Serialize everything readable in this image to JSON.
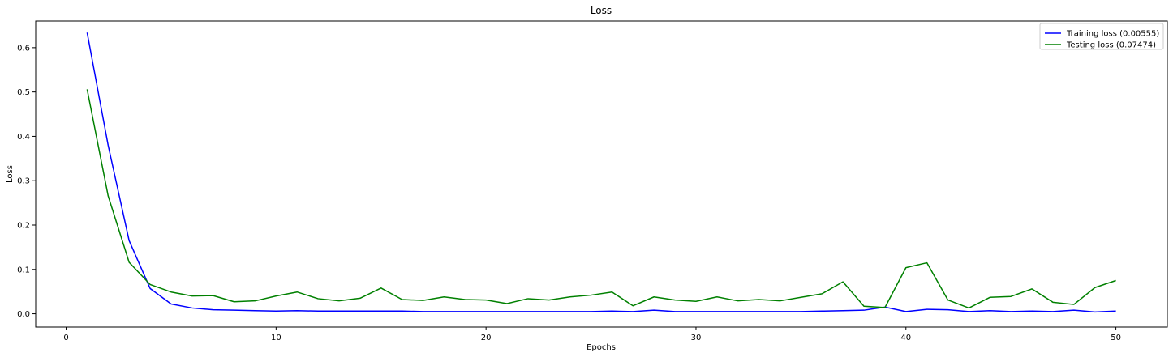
{
  "chart_data": {
    "type": "line",
    "title": "Loss",
    "xlabel": "Epochs",
    "ylabel": "Loss",
    "xlim": [
      -1.45,
      52.45
    ],
    "ylim": [
      -0.03,
      0.66
    ],
    "xticks": [
      0,
      10,
      20,
      30,
      40,
      50
    ],
    "yticks": [
      0.0,
      0.1,
      0.2,
      0.3,
      0.4,
      0.5,
      0.6
    ],
    "ytick_labels": [
      "0.0",
      "0.1",
      "0.2",
      "0.3",
      "0.4",
      "0.5",
      "0.6"
    ],
    "grid": false,
    "legend_position": "top-right",
    "x": [
      1,
      2,
      3,
      4,
      5,
      6,
      7,
      8,
      9,
      10,
      11,
      12,
      13,
      14,
      15,
      16,
      17,
      18,
      19,
      20,
      21,
      22,
      23,
      24,
      25,
      26,
      27,
      28,
      29,
      30,
      31,
      32,
      33,
      34,
      35,
      36,
      37,
      38,
      39,
      40,
      41,
      42,
      43,
      44,
      45,
      46,
      47,
      48,
      49,
      50
    ],
    "series": [
      {
        "name": "Training loss (0.00555)",
        "color": "#0000ff",
        "values": [
          0.634,
          0.38,
          0.165,
          0.057,
          0.022,
          0.013,
          0.009,
          0.008,
          0.007,
          0.006,
          0.007,
          0.006,
          0.006,
          0.006,
          0.006,
          0.006,
          0.005,
          0.005,
          0.005,
          0.005,
          0.005,
          0.005,
          0.005,
          0.005,
          0.005,
          0.006,
          0.005,
          0.008,
          0.005,
          0.005,
          0.005,
          0.005,
          0.005,
          0.005,
          0.005,
          0.006,
          0.007,
          0.008,
          0.015,
          0.005,
          0.01,
          0.009,
          0.005,
          0.007,
          0.005,
          0.006,
          0.005,
          0.008,
          0.004,
          0.006
        ]
      },
      {
        "name": "Testing loss (0.07474)",
        "color": "#008000",
        "values": [
          0.506,
          0.266,
          0.116,
          0.066,
          0.049,
          0.04,
          0.041,
          0.027,
          0.029,
          0.04,
          0.049,
          0.034,
          0.029,
          0.035,
          0.058,
          0.032,
          0.03,
          0.038,
          0.032,
          0.031,
          0.023,
          0.034,
          0.031,
          0.038,
          0.042,
          0.049,
          0.018,
          0.038,
          0.031,
          0.028,
          0.038,
          0.029,
          0.032,
          0.029,
          0.037,
          0.045,
          0.072,
          0.017,
          0.014,
          0.104,
          0.115,
          0.031,
          0.013,
          0.037,
          0.039,
          0.056,
          0.026,
          0.021,
          0.059,
          0.075
        ]
      }
    ]
  }
}
